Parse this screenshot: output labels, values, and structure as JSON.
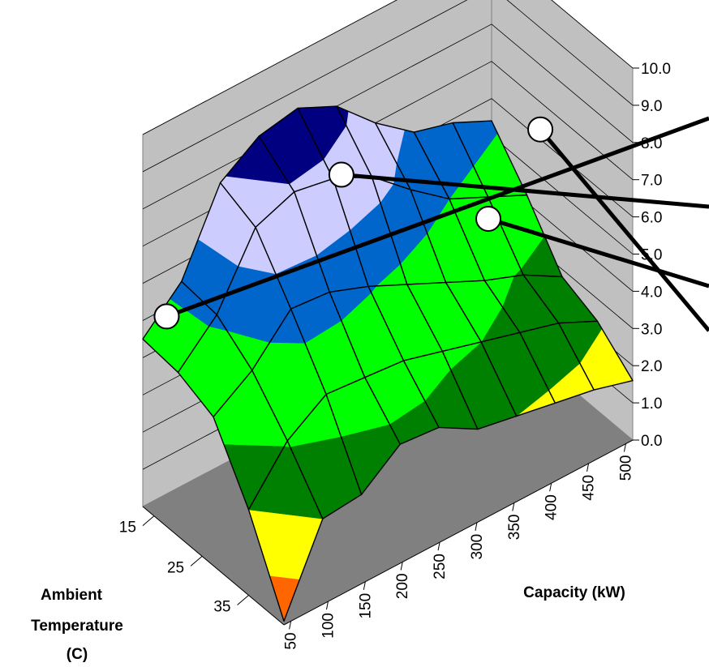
{
  "chart_data": {
    "type": "surface",
    "title": "",
    "xlabel": "Capacity (kW)",
    "ylabel_lines": [
      "Ambient",
      "Temperature",
      "(C)"
    ],
    "zlabel": "",
    "x_ticks": [
      "50",
      "100",
      "150",
      "200",
      "250",
      "300",
      "350",
      "400",
      "450",
      "500"
    ],
    "depth_ticks": [
      "15",
      "25",
      "35"
    ],
    "z_ticks": [
      "0.0",
      "1.0",
      "2.0",
      "3.0",
      "4.0",
      "5.0",
      "6.0",
      "7.0",
      "8.0",
      "9.0",
      "10.0"
    ],
    "zlim": [
      0,
      10
    ],
    "grid": true,
    "legend": "none",
    "band_colors": [
      "#ff6600",
      "#ffff00",
      "#008000",
      "#00ff00",
      "#0066cc",
      "#ccccff",
      "#000080",
      "#ff00ff"
    ],
    "band_edges": [
      0,
      1,
      2.3,
      3.5,
      5.2,
      6.4,
      7.7,
      8.7,
      10
    ],
    "surface_z": [
      [
        4.5,
        5.5,
        7.6,
        8.3,
        8.5,
        8.0,
        7.0,
        6.2,
        5.9,
        5.4
      ],
      [
        4.4,
        5.4,
        7.2,
        7.6,
        7.4,
        6.9,
        6.0,
        5.2,
        4.7,
        4.2
      ],
      [
        4.0,
        4.7,
        5.8,
        5.7,
        5.3,
        4.8,
        4.3,
        3.8,
        3.4,
        2.8
      ],
      [
        2.3,
        3.6,
        4.3,
        4.2,
        4.1,
        3.8,
        3.5,
        3.2,
        2.9,
        2.4
      ],
      [
        0.1,
        2.3,
        2.4,
        3.2,
        3.1,
        2.5,
        2.3,
        2.1,
        1.9,
        1.6
      ]
    ],
    "markers": [
      {
        "capacity_index": 0.48,
        "temp_index": 0.15
      },
      {
        "capacity_index": 4.26,
        "temp_index": 0.95
      },
      {
        "capacity_index": 7.76,
        "temp_index": 1.27
      },
      {
        "capacity_index": 9.92,
        "temp_index": 0.37
      }
    ]
  }
}
